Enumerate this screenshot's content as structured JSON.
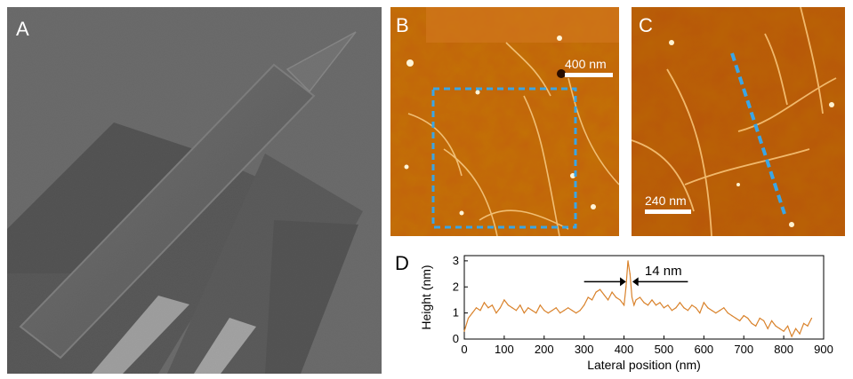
{
  "panels": {
    "a": {
      "label": "A"
    },
    "b": {
      "label": "B",
      "scale_label": "400 nm"
    },
    "c": {
      "label": "C",
      "scale_label": "240 nm"
    },
    "d": {
      "label": "D"
    }
  },
  "colors": {
    "afm_dark": "#8a3a00",
    "afm_mid": "#c2620c",
    "afm_light": "#f0b050",
    "dashed_box": "#3aa6e6",
    "profile_line": "#d9822b",
    "sem_background": "#5a5a5a"
  },
  "chart_data": {
    "type": "line",
    "xlabel": "Lateral position (nm)",
    "ylabel": "Height (nm)",
    "xlim": [
      0,
      900
    ],
    "ylim": [
      0,
      3.2
    ],
    "xticks": [
      0,
      100,
      200,
      300,
      400,
      500,
      600,
      700,
      800,
      900
    ],
    "yticks": [
      0,
      1,
      2,
      3
    ],
    "annotation": "14 nm",
    "series": [
      {
        "x": [
          0,
          10,
          20,
          30,
          40,
          50,
          60,
          70,
          80,
          90,
          100,
          110,
          120,
          130,
          140,
          150,
          160,
          170,
          180,
          190,
          200,
          210,
          220,
          230,
          240,
          250,
          260,
          270,
          280,
          290,
          300,
          310,
          320,
          330,
          340,
          350,
          360,
          370,
          380,
          390,
          400,
          405,
          410,
          415,
          420,
          425,
          430,
          440,
          450,
          460,
          470,
          480,
          490,
          500,
          510,
          520,
          530,
          540,
          550,
          560,
          570,
          580,
          590,
          600,
          610,
          620,
          630,
          640,
          650,
          660,
          670,
          680,
          690,
          700,
          710,
          720,
          730,
          740,
          750,
          760,
          770,
          780,
          790,
          800,
          810,
          820,
          830,
          840,
          850,
          860,
          870
        ],
        "y": [
          0.3,
          0.8,
          1.0,
          1.2,
          1.1,
          1.4,
          1.2,
          1.3,
          1.0,
          1.2,
          1.5,
          1.3,
          1.2,
          1.1,
          1.3,
          1.0,
          1.2,
          1.1,
          1.0,
          1.3,
          1.1,
          1.0,
          1.1,
          1.2,
          1.0,
          1.1,
          1.2,
          1.1,
          1.0,
          1.1,
          1.3,
          1.6,
          1.5,
          1.8,
          1.9,
          1.7,
          1.5,
          1.8,
          1.6,
          1.5,
          1.3,
          2.0,
          3.0,
          2.5,
          1.6,
          1.3,
          1.5,
          1.6,
          1.4,
          1.3,
          1.5,
          1.3,
          1.4,
          1.2,
          1.3,
          1.1,
          1.2,
          1.4,
          1.2,
          1.1,
          1.3,
          1.2,
          1.0,
          1.4,
          1.2,
          1.1,
          1.0,
          1.1,
          1.2,
          1.0,
          0.9,
          0.8,
          0.7,
          0.9,
          0.8,
          0.6,
          0.5,
          0.8,
          0.7,
          0.4,
          0.7,
          0.5,
          0.4,
          0.3,
          0.5,
          0.1,
          0.4,
          0.2,
          0.6,
          0.5,
          0.8
        ]
      }
    ]
  }
}
